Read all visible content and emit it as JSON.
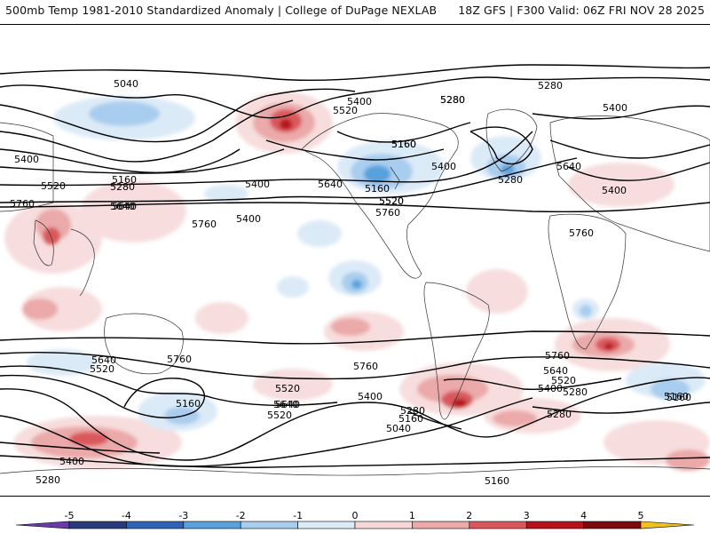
{
  "header": {
    "title_left": "500mb Temp 1981-2010 Standardized Anomaly | College of DuPage NEXLAB",
    "title_right": "18Z GFS | F300 Valid: 06Z FRI NOV 28 2025"
  },
  "colorbar": {
    "ticks": [
      "-5",
      "-4",
      "-3",
      "-2",
      "-1",
      "0",
      "1",
      "2",
      "3",
      "4",
      "5"
    ],
    "colors": [
      "#2a3a7a",
      "#2f63b8",
      "#5aa0dd",
      "#a9cdee",
      "#dbeaf7",
      "#ffffff",
      "#f7d8d8",
      "#eba9a9",
      "#d9585c",
      "#b5121b",
      "#7a0a10"
    ],
    "end_low_color": "#6a3aa8",
    "end_high_color": "#f0c020"
  },
  "contour_labels": [
    "5040",
    "5160",
    "5280",
    "5400",
    "5520",
    "5640",
    "5760",
    "5400",
    "5520",
    "5400",
    "5280",
    "5160",
    "5280",
    "5400",
    "5400",
    "5160",
    "5280",
    "5400",
    "5640",
    "5520",
    "5640",
    "5400",
    "5160",
    "5280",
    "5520",
    "5640",
    "5760",
    "5760",
    "5760",
    "5760",
    "5640",
    "5520",
    "5760",
    "5760",
    "5640",
    "5520",
    "5400",
    "5280",
    "5160",
    "5160",
    "5640",
    "5520",
    "5400",
    "5280",
    "5160",
    "5040",
    "5160",
    "5280",
    "5400",
    "5520",
    "5640",
    "5280",
    "5160"
  ]
}
